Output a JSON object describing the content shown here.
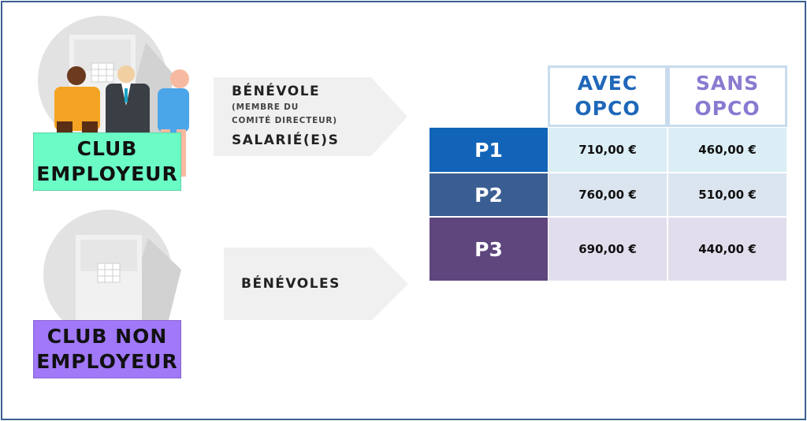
{
  "colors": {
    "club_employeur_bg": "#6bfcc6",
    "club_non_employeur_bg": "#a078f8",
    "avec_text": "#1f67b9",
    "sans_text": "#8a7ad0",
    "p1_bg": "#1264b8",
    "p2_bg": "#3a5e91",
    "p3_bg": "#5f467c",
    "p1_row": "#dbeef5",
    "p2_row": "#dbe5ef",
    "p3_row": "#e2ddec",
    "frame": "#3b5f8f"
  },
  "clubs": [
    {
      "label_line1": "CLUB",
      "label_line2": "EMPLOYEUR",
      "illustration": "people-group-icon",
      "arrow": {
        "title": "BÉNÉVOLE",
        "sub_line1": "(MEMBRE DU",
        "sub_line2": "COMITÉ DIRECTEUR)",
        "title2": "SALARIÉ(E)S"
      }
    },
    {
      "label_line1": "CLUB NON",
      "label_line2": "EMPLOYEUR",
      "illustration": "office-building-icon",
      "arrow": {
        "title": "BÉNÉVOLES"
      }
    }
  ],
  "table": {
    "headers": [
      {
        "line1": "AVEC",
        "line2": "OPCO"
      },
      {
        "line1": "SANS",
        "line2": "OPCO"
      }
    ],
    "rows": [
      {
        "label": "P1",
        "avec": "710,00 €",
        "sans": "460,00 €"
      },
      {
        "label": "P2",
        "avec": "760,00 €",
        "sans": "510,00 €"
      },
      {
        "label": "P3",
        "avec": "690,00 €",
        "sans": "440,00 €"
      }
    ]
  }
}
